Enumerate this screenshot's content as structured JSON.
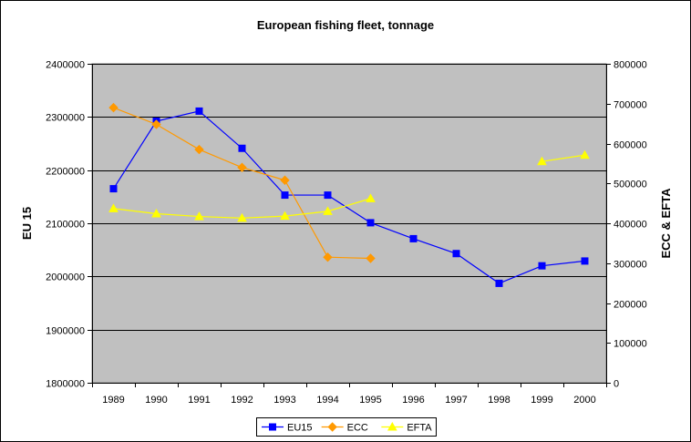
{
  "chart_data": {
    "type": "line",
    "title": "European fishing fleet, tonnage",
    "xlabel": "",
    "ylabel": "EU 15",
    "y2label": "ECC & EFTA",
    "categories": [
      "1989",
      "1990",
      "1991",
      "1992",
      "1993",
      "1994",
      "1995",
      "1996",
      "1997",
      "1998",
      "1999",
      "2000"
    ],
    "ylim": [
      1800000,
      2400000
    ],
    "y2lim": [
      0,
      800000
    ],
    "yticks": [
      "1800000",
      "1900000",
      "2000000",
      "2100000",
      "2200000",
      "2300000",
      "2400000"
    ],
    "y2ticks": [
      "0",
      "100000",
      "200000",
      "300000",
      "400000",
      "500000",
      "600000",
      "700000",
      "800000"
    ],
    "grid": "horizontal",
    "plot_background": "#c0c0c0",
    "legend_position": "bottom",
    "series": [
      {
        "name": "EU15",
        "axis": "left",
        "color": "#0000ff",
        "marker": "square",
        "values": [
          2165000,
          2292000,
          2311000,
          2241000,
          2153000,
          2153000,
          2101000,
          2071000,
          2043000,
          1987000,
          2020000,
          2029000
        ]
      },
      {
        "name": "ECC",
        "axis": "right",
        "color": "#ff9900",
        "marker": "diamond",
        "values": [
          690000,
          648000,
          585000,
          540000,
          508000,
          315000,
          312000,
          null,
          null,
          null,
          null,
          null
        ]
      },
      {
        "name": "EFTA",
        "axis": "right",
        "color": "#ffff00",
        "marker": "triangle",
        "values": [
          437000,
          424000,
          417000,
          413000,
          418000,
          430000,
          462000,
          null,
          null,
          null,
          555000,
          571000
        ]
      }
    ]
  }
}
